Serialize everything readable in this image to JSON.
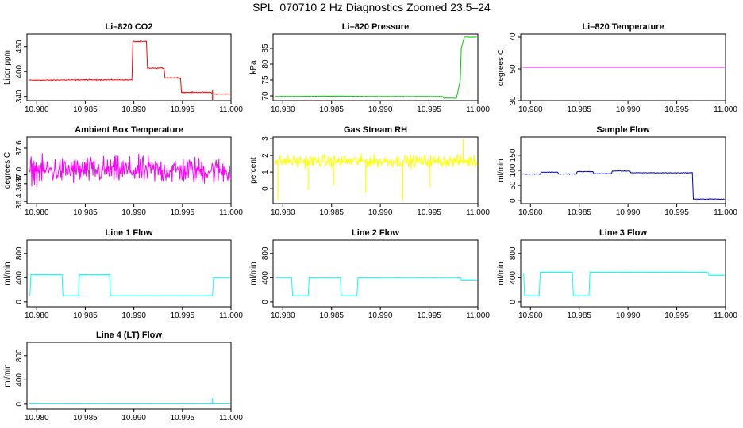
{
  "figure": {
    "title": "SPL_070710  2 Hz Diagnostics Zoomed 23.5–24"
  },
  "chart_data": [
    {
      "type": "line",
      "title": "Li–820 CO2",
      "ylabel": "Licor ppm",
      "color": "#ff0000",
      "xlim": [
        10.979,
        11.0
      ],
      "ylim": [
        330,
        490
      ],
      "x_ticks": [
        "10.980",
        "10.985",
        "10.990",
        "10.995",
        "11.000"
      ],
      "y_ticks": [
        340,
        400,
        460
      ],
      "series": [
        {
          "name": "",
          "noise": 1.5,
          "spikes": [
            [
              10.9981,
              323
            ],
            [
              10.9981,
              357
            ]
          ],
          "points": [
            [
              10.9792,
              379
            ],
            [
              10.98,
              379
            ],
            [
              10.985,
              380
            ],
            [
              10.9898,
              380
            ],
            [
              10.9899,
              472
            ],
            [
              10.9913,
              472
            ],
            [
              10.9914,
              408
            ],
            [
              10.9931,
              408
            ],
            [
              10.9932,
              385
            ],
            [
              10.9948,
              385
            ],
            [
              10.9949,
              350
            ],
            [
              10.998,
              350
            ],
            [
              10.9981,
              346
            ],
            [
              10.9999,
              346
            ]
          ]
        }
      ]
    },
    {
      "type": "line",
      "title": "Li–820 Pressure",
      "ylabel": "kPa",
      "color": "#00cc00",
      "xlim": [
        10.979,
        11.0
      ],
      "ylim": [
        68.5,
        89.5
      ],
      "x_ticks": [
        "10.980",
        "10.985",
        "10.990",
        "10.995",
        "11.000"
      ],
      "y_ticks": [
        70,
        75,
        80,
        85
      ],
      "series": [
        {
          "name": "",
          "noise": 0.1,
          "spikes": [],
          "points": [
            [
              10.9792,
              69.8
            ],
            [
              10.985,
              69.9
            ],
            [
              10.99,
              69.8
            ],
            [
              10.9964,
              69.8
            ],
            [
              10.9965,
              69.3
            ],
            [
              10.9978,
              69.3
            ],
            [
              10.9982,
              75
            ],
            [
              10.9983,
              85
            ],
            [
              10.9986,
              88.5
            ],
            [
              10.9999,
              88.5
            ]
          ]
        }
      ]
    },
    {
      "type": "line",
      "title": "Li–820 Temperature",
      "ylabel": "degrees C",
      "color": "#ff00ff",
      "xlim": [
        10.979,
        11.0
      ],
      "ylim": [
        30,
        72
      ],
      "x_ticks": [
        "10.980",
        "10.985",
        "10.990",
        "10.995",
        "11.000"
      ],
      "y_ticks": [
        30,
        50,
        70
      ],
      "series": [
        {
          "name": "",
          "noise": 0,
          "spikes": [],
          "points": [
            [
              10.9792,
              51
            ],
            [
              10.9999,
              51
            ]
          ]
        }
      ]
    },
    {
      "type": "line",
      "title": "Ambient Box Temperature",
      "ylabel": "degrees C",
      "color": "#ff00ff",
      "xlim": [
        10.979,
        11.0
      ],
      "ylim": [
        36.35,
        37.85
      ],
      "x_ticks": [
        "10.980",
        "10.985",
        "10.990",
        "10.995",
        "11.000"
      ],
      "y_ticks": [
        "36.4",
        "36.8",
        "37.0",
        "37.6"
      ],
      "series": [
        {
          "name": "",
          "noise": 0.45,
          "spikes": [],
          "points": [
            [
              10.9792,
              37.1
            ],
            [
              10.9999,
              37.1
            ]
          ]
        }
      ]
    },
    {
      "type": "line",
      "title": "Gas Stream RH",
      "ylabel": "percent",
      "color": "#ffff00",
      "xlim": [
        10.979,
        11.0
      ],
      "ylim": [
        -0.9,
        3.1
      ],
      "x_ticks": [
        "10.980",
        "10.985",
        "10.990",
        "10.995",
        "11.000"
      ],
      "y_ticks": [
        0,
        1,
        2,
        3
      ],
      "series": [
        {
          "name": "",
          "noise": 0.55,
          "spikes": [
            [
              10.9795,
              -0.7
            ],
            [
              10.9826,
              -0.1
            ],
            [
              10.9852,
              0.2
            ],
            [
              10.9885,
              -0.2
            ],
            [
              10.9923,
              -0.7
            ],
            [
              10.9951,
              0.1
            ],
            [
              10.9985,
              3.0
            ]
          ],
          "points": [
            [
              10.9792,
              1.65
            ],
            [
              10.9999,
              1.65
            ]
          ]
        }
      ]
    },
    {
      "type": "line",
      "title": "Sample Flow",
      "ylabel": "ml/min",
      "color": "#0000cc",
      "xlim": [
        10.979,
        11.0
      ],
      "ylim": [
        -10,
        210
      ],
      "x_ticks": [
        "10.980",
        "10.985",
        "10.990",
        "10.995",
        "11.000"
      ],
      "y_ticks": [
        0,
        50,
        100,
        150
      ],
      "series": [
        {
          "name": "",
          "noise": 1.5,
          "spikes": [],
          "points": [
            [
              10.9792,
              88
            ],
            [
              10.981,
              88
            ],
            [
              10.9811,
              94
            ],
            [
              10.9828,
              94
            ],
            [
              10.9829,
              88
            ],
            [
              10.9847,
              88
            ],
            [
              10.9848,
              96
            ],
            [
              10.9864,
              96
            ],
            [
              10.9865,
              89
            ],
            [
              10.9883,
              89
            ],
            [
              10.9884,
              98
            ],
            [
              10.9902,
              98
            ],
            [
              10.9903,
              92
            ],
            [
              10.9966,
              92
            ],
            [
              10.9967,
              5
            ],
            [
              10.9999,
              5
            ]
          ]
        }
      ]
    },
    {
      "type": "line",
      "title": "Line 1 Flow",
      "ylabel": "ml/min",
      "color": "#00ffff",
      "xlim": [
        10.979,
        11.0
      ],
      "ylim": [
        -80,
        1020
      ],
      "x_ticks": [
        "10.980",
        "10.985",
        "10.990",
        "10.995",
        "11.000"
      ],
      "y_ticks": [
        0,
        400,
        800
      ],
      "series": [
        {
          "name": "",
          "noise": 4,
          "spikes": [],
          "points": [
            [
              10.9793,
              100
            ],
            [
              10.9794,
              450
            ],
            [
              10.9826,
              450
            ],
            [
              10.9827,
              100
            ],
            [
              10.9843,
              100
            ],
            [
              10.9844,
              450
            ],
            [
              10.9875,
              450
            ],
            [
              10.9876,
              100
            ],
            [
              10.9981,
              100
            ],
            [
              10.9982,
              400
            ],
            [
              10.9999,
              400
            ]
          ]
        }
      ]
    },
    {
      "type": "line",
      "title": "Line 2 Flow",
      "ylabel": "ml/min",
      "color": "#00ffff",
      "xlim": [
        10.979,
        11.0
      ],
      "ylim": [
        -80,
        1020
      ],
      "x_ticks": [
        "10.980",
        "10.985",
        "10.990",
        "10.995",
        "11.000"
      ],
      "y_ticks": [
        0,
        400,
        800
      ],
      "series": [
        {
          "name": "",
          "noise": 4,
          "spikes": [],
          "points": [
            [
              10.9793,
              400
            ],
            [
              10.9809,
              400
            ],
            [
              10.981,
              100
            ],
            [
              10.9826,
              100
            ],
            [
              10.9827,
              400
            ],
            [
              10.9859,
              400
            ],
            [
              10.986,
              100
            ],
            [
              10.9876,
              100
            ],
            [
              10.9877,
              400
            ],
            [
              10.9982,
              400
            ],
            [
              10.9983,
              360
            ],
            [
              10.9999,
              360
            ]
          ]
        }
      ]
    },
    {
      "type": "line",
      "title": "Line 3 Flow",
      "ylabel": "ml/min",
      "color": "#00ffff",
      "xlim": [
        10.979,
        11.0
      ],
      "ylim": [
        -80,
        1020
      ],
      "x_ticks": [
        "10.980",
        "10.985",
        "10.990",
        "10.995",
        "11.000"
      ],
      "y_ticks": [
        0,
        400,
        800
      ],
      "series": [
        {
          "name": "",
          "noise": 4,
          "spikes": [],
          "points": [
            [
              10.9793,
              480
            ],
            [
              10.9794,
              100
            ],
            [
              10.9809,
              100
            ],
            [
              10.981,
              490
            ],
            [
              10.9843,
              490
            ],
            [
              10.9844,
              100
            ],
            [
              10.986,
              100
            ],
            [
              10.9861,
              490
            ],
            [
              10.9982,
              490
            ],
            [
              10.9983,
              440
            ],
            [
              10.9999,
              440
            ]
          ]
        }
      ]
    },
    {
      "type": "line",
      "title": "Line 4 (LT) Flow",
      "ylabel": "ml/min",
      "color": "#00ffff",
      "xlim": [
        10.979,
        11.0
      ],
      "ylim": [
        -80,
        1020
      ],
      "x_ticks": [
        "10.980",
        "10.985",
        "10.990",
        "10.995",
        "11.000"
      ],
      "y_ticks": [
        0,
        400,
        800
      ],
      "series": [
        {
          "name": "",
          "noise": 1,
          "spikes": [
            [
              10.9981,
              100
            ]
          ],
          "points": [
            [
              10.9792,
              5
            ],
            [
              10.9999,
              5
            ]
          ]
        }
      ]
    }
  ]
}
